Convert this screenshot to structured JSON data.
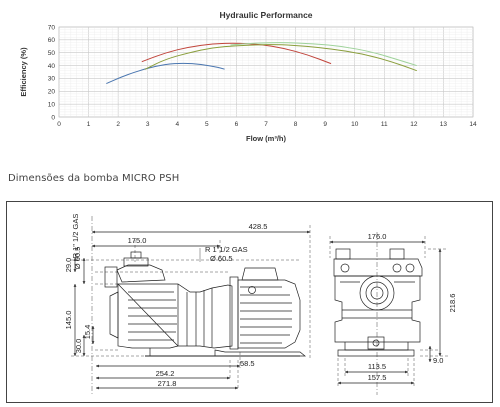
{
  "chart_data": {
    "type": "line",
    "title": "Hydraulic Performance",
    "xlabel": "Flow (m³/h)",
    "ylabel": "Efficiency (%)",
    "xlim": [
      0,
      14
    ],
    "ylim": [
      0,
      70
    ],
    "x_ticks": [
      "0",
      "1",
      "2",
      "3",
      "4",
      "5",
      "6",
      "7",
      "8",
      "9",
      "10",
      "11",
      "12",
      "13",
      "14"
    ],
    "y_ticks": [
      "0",
      "10",
      "20",
      "30",
      "40",
      "50",
      "60",
      "70"
    ],
    "grid": true,
    "series": [
      {
        "color": "#4a76b0",
        "points": [
          [
            1.6,
            26
          ],
          [
            2.2,
            32
          ],
          [
            2.9,
            37.5
          ],
          [
            3.6,
            41
          ],
          [
            4.2,
            42
          ],
          [
            4.8,
            41
          ],
          [
            5.4,
            38.5
          ],
          [
            5.6,
            37.2
          ]
        ]
      },
      {
        "color": "#c1443b",
        "points": [
          [
            2.8,
            43
          ],
          [
            3.6,
            50
          ],
          [
            4.4,
            54.5
          ],
          [
            5.2,
            57
          ],
          [
            6,
            57.5
          ],
          [
            6.8,
            56.5
          ],
          [
            7.6,
            53.5
          ],
          [
            8.4,
            48.5
          ],
          [
            9.2,
            41.5
          ]
        ]
      },
      {
        "color": "#8a9e3c",
        "points": [
          [
            2.9,
            37
          ],
          [
            3.6,
            45
          ],
          [
            4.4,
            50
          ],
          [
            5.2,
            54
          ],
          [
            6,
            55.5
          ],
          [
            6.6,
            56
          ],
          [
            7.4,
            56.5
          ],
          [
            8.4,
            55
          ],
          [
            9.2,
            53
          ],
          [
            10.2,
            49.5
          ],
          [
            11.2,
            43.5
          ],
          [
            12.1,
            36
          ]
        ]
      },
      {
        "color": "#9ed29a",
        "points": [
          [
            5.8,
            56
          ],
          [
            6.6,
            57.5
          ],
          [
            7.6,
            58
          ],
          [
            8.6,
            57
          ],
          [
            9.6,
            55
          ],
          [
            10.6,
            50.5
          ],
          [
            11.4,
            45
          ],
          [
            12.1,
            40
          ]
        ]
      }
    ]
  },
  "caption": "Dimensões da bomba MICRO PSH",
  "dimensions": {
    "d428": "428.5",
    "d175": "175.0",
    "r_thread_v": "R 1\" 1/2 GAS",
    "r_thread_h": "R 1\"1/2 GAS",
    "d29": "29.0",
    "dia60_v": "Ø 60.5",
    "dia60_h": "Ø 60.5",
    "d145": "145.0",
    "d30": "30.0",
    "d15": "15.4",
    "d58": "58.5",
    "d254": "254.2",
    "d271": "271.8",
    "d176": "176.0",
    "d218": "218.6",
    "d9": "9.0",
    "d113": "113.5",
    "d157": "157.5"
  }
}
